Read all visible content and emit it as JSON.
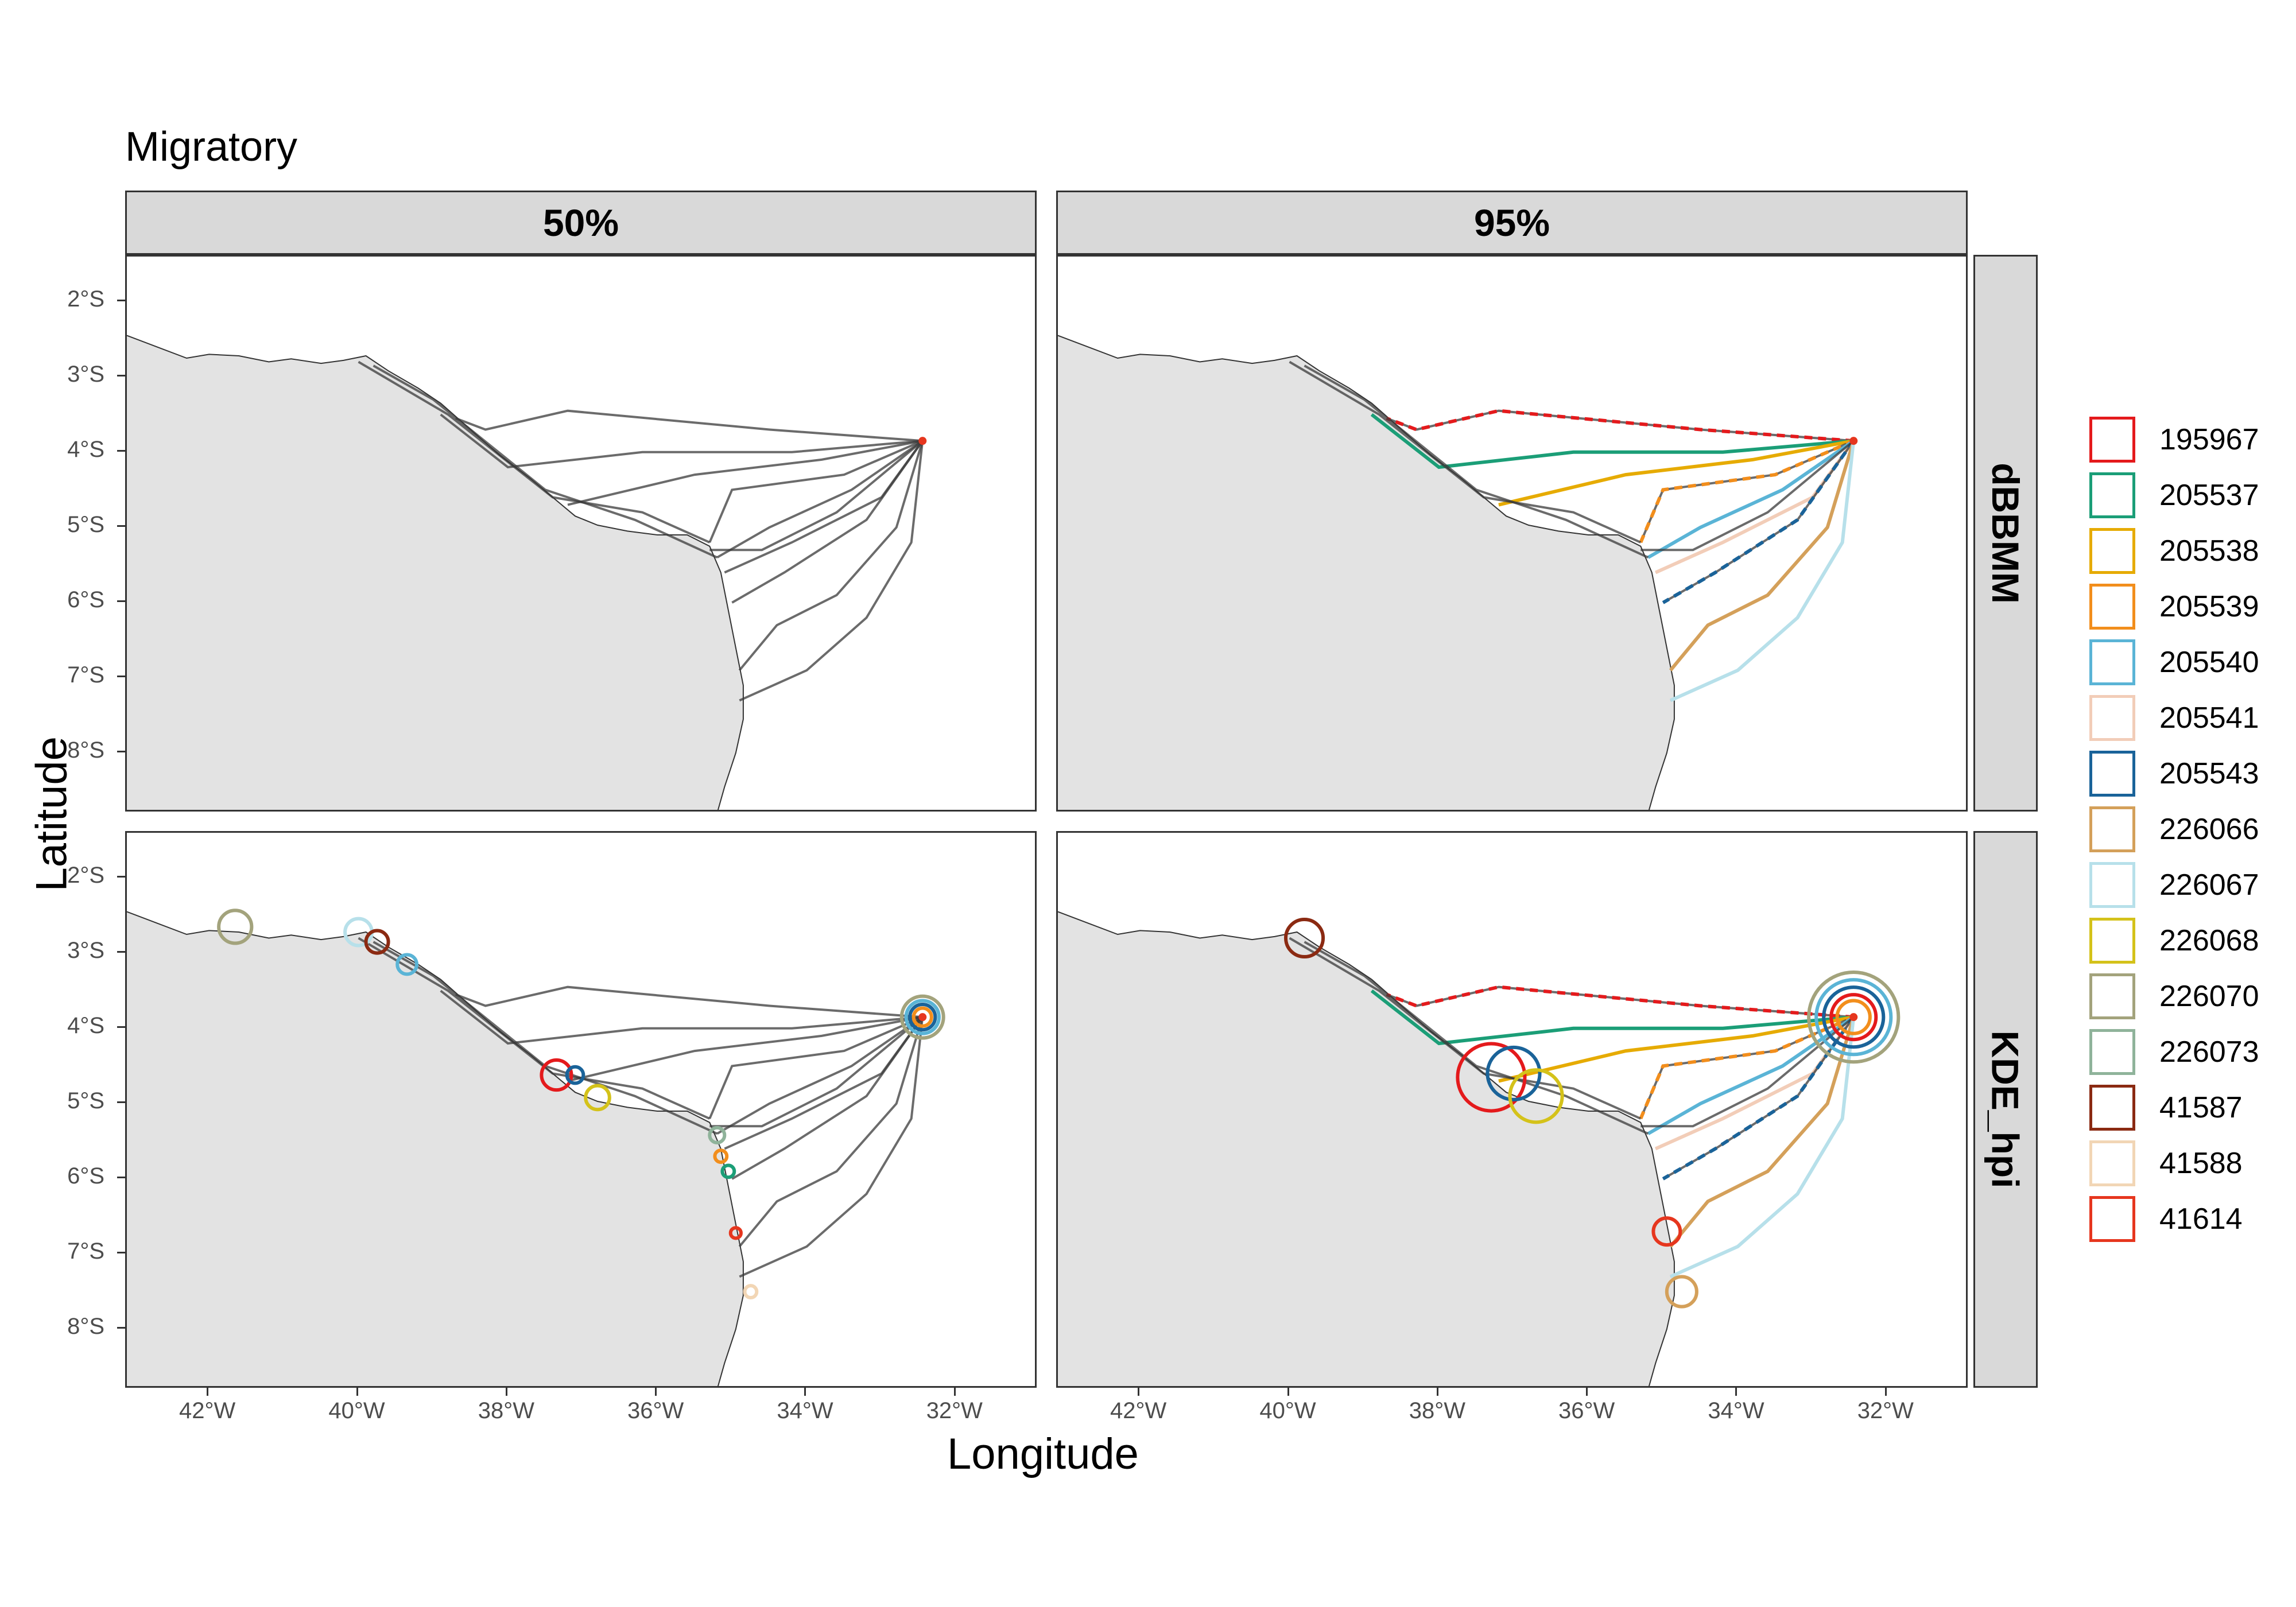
{
  "title": "Migratory",
  "axes": {
    "xlabel": "Longitude",
    "ylabel": "Latitude"
  },
  "facets": {
    "columns": [
      "50%",
      "95%"
    ],
    "rows": [
      "dBBMM",
      "KDE_hpi"
    ]
  },
  "x_ticks": [
    "42°W",
    "40°W",
    "38°W",
    "36°W",
    "34°W",
    "32°W"
  ],
  "y_ticks": [
    "2°S",
    "3°S",
    "4°S",
    "5°S",
    "6°S",
    "7°S",
    "8°S"
  ],
  "legend": [
    {
      "id": "195967",
      "color": "#e41a1c"
    },
    {
      "id": "205537",
      "color": "#1b9e77"
    },
    {
      "id": "205538",
      "color": "#e6ab02"
    },
    {
      "id": "205539",
      "color": "#f28e1c"
    },
    {
      "id": "205540",
      "color": "#5ab4d6"
    },
    {
      "id": "205541",
      "color": "#f2cdb8"
    },
    {
      "id": "205543",
      "color": "#1a6399"
    },
    {
      "id": "226066",
      "color": "#d4a05a"
    },
    {
      "id": "226067",
      "color": "#b7e0ea"
    },
    {
      "id": "226068",
      "color": "#d4c21a"
    },
    {
      "id": "226070",
      "color": "#a3a37c"
    },
    {
      "id": "226073",
      "color": "#8fb39a"
    },
    {
      "id": "41587",
      "color": "#8b2a12"
    },
    {
      "id": "41588",
      "color": "#f2d6b5"
    },
    {
      "id": "41614",
      "color": "#e6361e"
    }
  ],
  "chart_data": {
    "type": "map",
    "xlim": [
      -43.1,
      -30.9
    ],
    "ylim": [
      -8.8,
      -1.4
    ],
    "coastline": [
      [
        -43.1,
        -2.45
      ],
      [
        -42.7,
        -2.6
      ],
      [
        -42.3,
        -2.75
      ],
      [
        -42.0,
        -2.7
      ],
      [
        -41.6,
        -2.72
      ],
      [
        -41.2,
        -2.8
      ],
      [
        -40.9,
        -2.76
      ],
      [
        -40.5,
        -2.82
      ],
      [
        -40.2,
        -2.78
      ],
      [
        -39.9,
        -2.72
      ],
      [
        -39.6,
        -2.92
      ],
      [
        -39.2,
        -3.15
      ],
      [
        -38.9,
        -3.35
      ],
      [
        -38.5,
        -3.7
      ],
      [
        -38.1,
        -4.05
      ],
      [
        -37.7,
        -4.35
      ],
      [
        -37.4,
        -4.6
      ],
      [
        -37.1,
        -4.85
      ],
      [
        -36.8,
        -4.97
      ],
      [
        -36.4,
        -5.05
      ],
      [
        -36.0,
        -5.1
      ],
      [
        -35.6,
        -5.1
      ],
      [
        -35.3,
        -5.25
      ],
      [
        -35.15,
        -5.6
      ],
      [
        -35.05,
        -6.1
      ],
      [
        -34.95,
        -6.6
      ],
      [
        -34.85,
        -7.1
      ],
      [
        -34.85,
        -7.55
      ],
      [
        -34.95,
        -8.0
      ],
      [
        -35.1,
        -8.45
      ],
      [
        -35.2,
        -8.8
      ]
    ],
    "tracks": [
      [
        [
          -32.45,
          -3.85
        ],
        [
          -34.5,
          -3.7
        ],
        [
          -37.2,
          -3.45
        ],
        [
          -38.3,
          -3.7
        ],
        [
          -38.7,
          -3.55
        ]
      ],
      [
        [
          -32.45,
          -3.85
        ],
        [
          -34.2,
          -4.0
        ],
        [
          -36.2,
          -4.0
        ],
        [
          -38.0,
          -4.2
        ],
        [
          -38.9,
          -3.5
        ]
      ],
      [
        [
          -32.45,
          -3.85
        ],
        [
          -33.8,
          -4.1
        ],
        [
          -35.5,
          -4.3
        ],
        [
          -37.2,
          -4.7
        ]
      ],
      [
        [
          -32.45,
          -3.85
        ],
        [
          -33.5,
          -4.3
        ],
        [
          -35.0,
          -4.5
        ],
        [
          -35.3,
          -5.2
        ]
      ],
      [
        [
          -32.45,
          -3.85
        ],
        [
          -33.4,
          -4.5
        ],
        [
          -34.5,
          -5.0
        ],
        [
          -35.2,
          -5.4
        ]
      ],
      [
        [
          -32.45,
          -3.85
        ],
        [
          -33.0,
          -4.6
        ],
        [
          -34.2,
          -5.2
        ],
        [
          -35.1,
          -5.6
        ]
      ],
      [
        [
          -32.45,
          -3.85
        ],
        [
          -33.2,
          -4.9
        ],
        [
          -34.3,
          -5.6
        ],
        [
          -35.0,
          -6.0
        ]
      ],
      [
        [
          -32.45,
          -3.85
        ],
        [
          -32.8,
          -5.0
        ],
        [
          -33.6,
          -5.9
        ],
        [
          -34.4,
          -6.3
        ],
        [
          -34.9,
          -6.9
        ]
      ],
      [
        [
          -32.45,
          -3.85
        ],
        [
          -32.6,
          -5.2
        ],
        [
          -33.2,
          -6.2
        ],
        [
          -34.0,
          -6.9
        ],
        [
          -34.9,
          -7.3
        ]
      ],
      [
        [
          -32.45,
          -3.85
        ],
        [
          -33.6,
          -4.8
        ],
        [
          -34.6,
          -5.3
        ],
        [
          -35.3,
          -5.3
        ]
      ],
      [
        [
          -35.3,
          -5.2
        ],
        [
          -36.2,
          -4.8
        ],
        [
          -37.4,
          -4.6
        ],
        [
          -38.8,
          -3.5
        ],
        [
          -40.0,
          -2.8
        ]
      ],
      [
        [
          -35.2,
          -5.4
        ],
        [
          -36.3,
          -4.9
        ],
        [
          -37.5,
          -4.5
        ],
        [
          -39.0,
          -3.3
        ],
        [
          -39.8,
          -2.85
        ]
      ]
    ],
    "facet_annotations": {
      "KDE_hpi_50": [
        {
          "id": "226070",
          "lon": -41.65,
          "lat": -2.65,
          "r": 0.22
        },
        {
          "id": "226067",
          "lon": -40.0,
          "lat": -2.72,
          "r": 0.18
        },
        {
          "id": "41587",
          "lon": -39.75,
          "lat": -2.85,
          "r": 0.15
        },
        {
          "id": "205540",
          "lon": -39.35,
          "lat": -3.15,
          "r": 0.13
        },
        {
          "id": "195967",
          "lon": -37.35,
          "lat": -4.62,
          "r": 0.2
        },
        {
          "id": "205543",
          "lon": -37.1,
          "lat": -4.62,
          "r": 0.11
        },
        {
          "id": "226068",
          "lon": -36.8,
          "lat": -4.92,
          "r": 0.16
        },
        {
          "id": "226073",
          "lon": -35.2,
          "lat": -5.42,
          "r": 0.1
        },
        {
          "id": "205539",
          "lon": -35.15,
          "lat": -5.7,
          "r": 0.08
        },
        {
          "id": "205537",
          "lon": -35.05,
          "lat": -5.9,
          "r": 0.08
        },
        {
          "id": "41614",
          "lon": -34.95,
          "lat": -6.72,
          "r": 0.07
        },
        {
          "id": "41588",
          "lon": -34.75,
          "lat": -7.5,
          "r": 0.08
        },
        {
          "id": "226070",
          "lon": -32.45,
          "lat": -3.85,
          "r": 0.28
        },
        {
          "id": "205540",
          "lon": -32.45,
          "lat": -3.85,
          "r": 0.22
        },
        {
          "id": "205543",
          "lon": -32.45,
          "lat": -3.85,
          "r": 0.17
        },
        {
          "id": "205539",
          "lon": -32.45,
          "lat": -3.85,
          "r": 0.12
        }
      ],
      "KDE_hpi_95": [
        {
          "id": "195967",
          "lon": -37.3,
          "lat": -4.65,
          "r": 0.45
        },
        {
          "id": "205543",
          "lon": -37.0,
          "lat": -4.6,
          "r": 0.35
        },
        {
          "id": "226068",
          "lon": -36.7,
          "lat": -4.9,
          "r": 0.35
        },
        {
          "id": "41587",
          "lon": -39.8,
          "lat": -2.8,
          "r": 0.25
        },
        {
          "id": "41614",
          "lon": -34.95,
          "lat": -6.7,
          "r": 0.18
        },
        {
          "id": "226066",
          "lon": -34.75,
          "lat": -7.5,
          "r": 0.2
        },
        {
          "id": "226070",
          "lon": -32.45,
          "lat": -3.85,
          "r": 0.6
        },
        {
          "id": "205540",
          "lon": -32.45,
          "lat": -3.85,
          "r": 0.5
        },
        {
          "id": "205543",
          "lon": -32.45,
          "lat": -3.85,
          "r": 0.4
        },
        {
          "id": "195967",
          "lon": -32.45,
          "lat": -3.85,
          "r": 0.3
        },
        {
          "id": "205539",
          "lon": -32.45,
          "lat": -3.85,
          "r": 0.22
        }
      ]
    }
  }
}
